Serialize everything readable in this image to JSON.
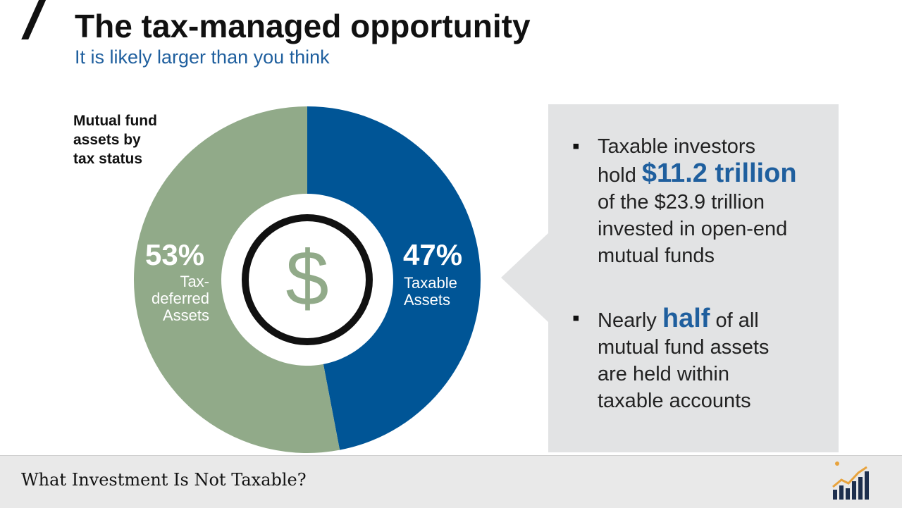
{
  "header": {
    "title": "The tax-managed opportunity",
    "subtitle": "It is likely larger than you think"
  },
  "chart_caption": [
    "Mutual fund",
    "assets by",
    "tax status"
  ],
  "chart_data": {
    "type": "pie",
    "title": "Mutual fund assets by tax status",
    "slices": [
      {
        "name": "Taxable Assets",
        "label_lines": [
          "Taxable",
          "Assets"
        ],
        "percent_label": "47%",
        "value": 47,
        "color": "#005596"
      },
      {
        "name": "Tax-deferred Assets",
        "label_lines": [
          "Tax-",
          "deferred",
          "Assets"
        ],
        "percent_label": "53%",
        "value": 53,
        "color": "#91aa89"
      }
    ],
    "center_icon": "dollar-sign-icon",
    "center_symbol": "$",
    "center_symbol_color": "#91aa89"
  },
  "callout": {
    "bullets": [
      {
        "marker": "▪",
        "line1": "Taxable investors",
        "line2_prefix": "hold ",
        "line2_highlight": "$11.2 trillion",
        "rest": [
          "of the $23.9 trillion",
          "invested in open-end",
          "mutual funds"
        ]
      },
      {
        "marker": "▪",
        "line1_prefix": "Nearly ",
        "line1_highlight": "half",
        "line1_suffix": " of all",
        "rest": [
          "mutual fund assets",
          "are held within",
          "taxable accounts"
        ]
      }
    ]
  },
  "footer": {
    "text": "What Investment Is Not Taxable?",
    "logo_icon": "rising-chart-icon"
  }
}
